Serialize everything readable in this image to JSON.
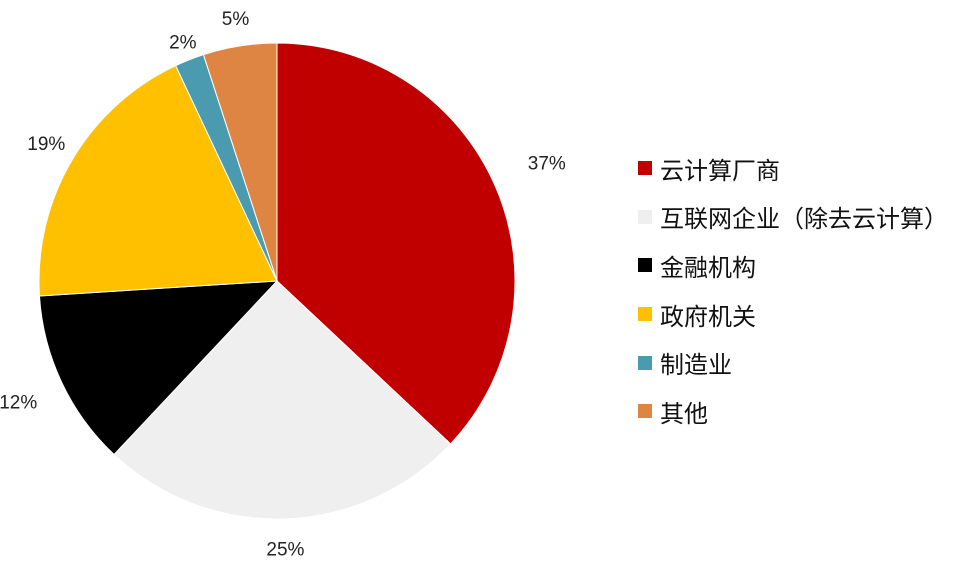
{
  "chart_data": {
    "type": "pie",
    "start_angle_deg": 0,
    "direction": "clockwise",
    "legend_position": "right",
    "slices": [
      {
        "label": "云计算厂商",
        "value": 37,
        "display": "37%",
        "color": "#C00000"
      },
      {
        "label": "互联网企业（除去云计算）",
        "value": 25,
        "display": "25%",
        "color": "#EFEFEF"
      },
      {
        "label": "金融机构",
        "value": 12,
        "display": "12%",
        "color": "#000000"
      },
      {
        "label": "政府机关",
        "value": 19,
        "display": "19%",
        "color": "#FFC000"
      },
      {
        "label": "制造业",
        "value": 2,
        "display": "2%",
        "color": "#4A9BB0"
      },
      {
        "label": "其他",
        "value": 5,
        "display": "5%",
        "color": "#DE8544"
      }
    ]
  }
}
